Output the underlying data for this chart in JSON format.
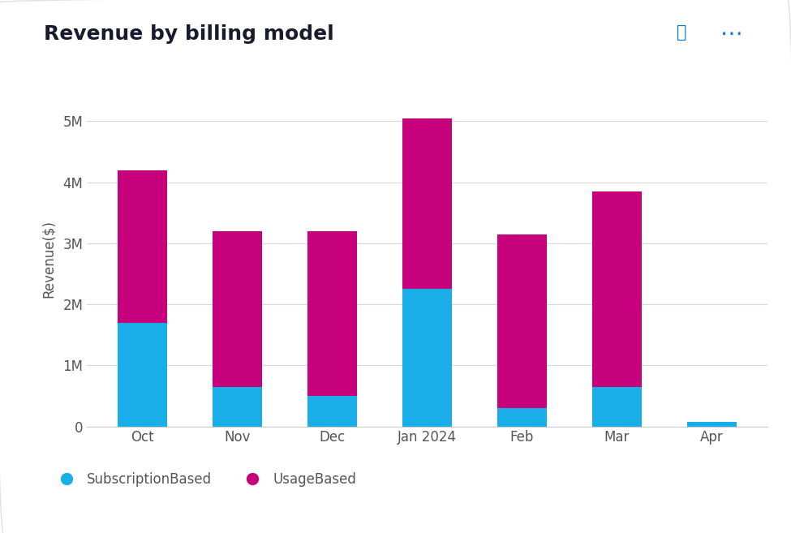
{
  "categories": [
    "Oct",
    "Nov",
    "Dec",
    "Jan 2024",
    "Feb",
    "Mar",
    "Apr"
  ],
  "subscription_based": [
    1.7,
    0.65,
    0.5,
    2.25,
    0.3,
    0.65,
    0.08
  ],
  "usage_based": [
    2.5,
    2.55,
    2.7,
    2.8,
    2.85,
    3.2,
    0.0
  ],
  "subscription_color": "#1AAEE8",
  "usage_color": "#C7007C",
  "title": "Revenue by billing model",
  "ylabel": "Revenue($)",
  "ylim": [
    0,
    5.5
  ],
  "yticks": [
    0,
    1,
    2,
    3,
    4,
    5
  ],
  "ytick_labels": [
    "0",
    "1M",
    "2M",
    "3M",
    "4M",
    "5M"
  ],
  "legend_subscription": "SubscriptionBased",
  "legend_usage": "UsageBased",
  "background_color": "#ffffff",
  "title_fontsize": 18,
  "axis_fontsize": 12,
  "legend_fontsize": 12,
  "bar_width": 0.52,
  "title_color": "#1a1a2e",
  "tick_color": "#555555"
}
